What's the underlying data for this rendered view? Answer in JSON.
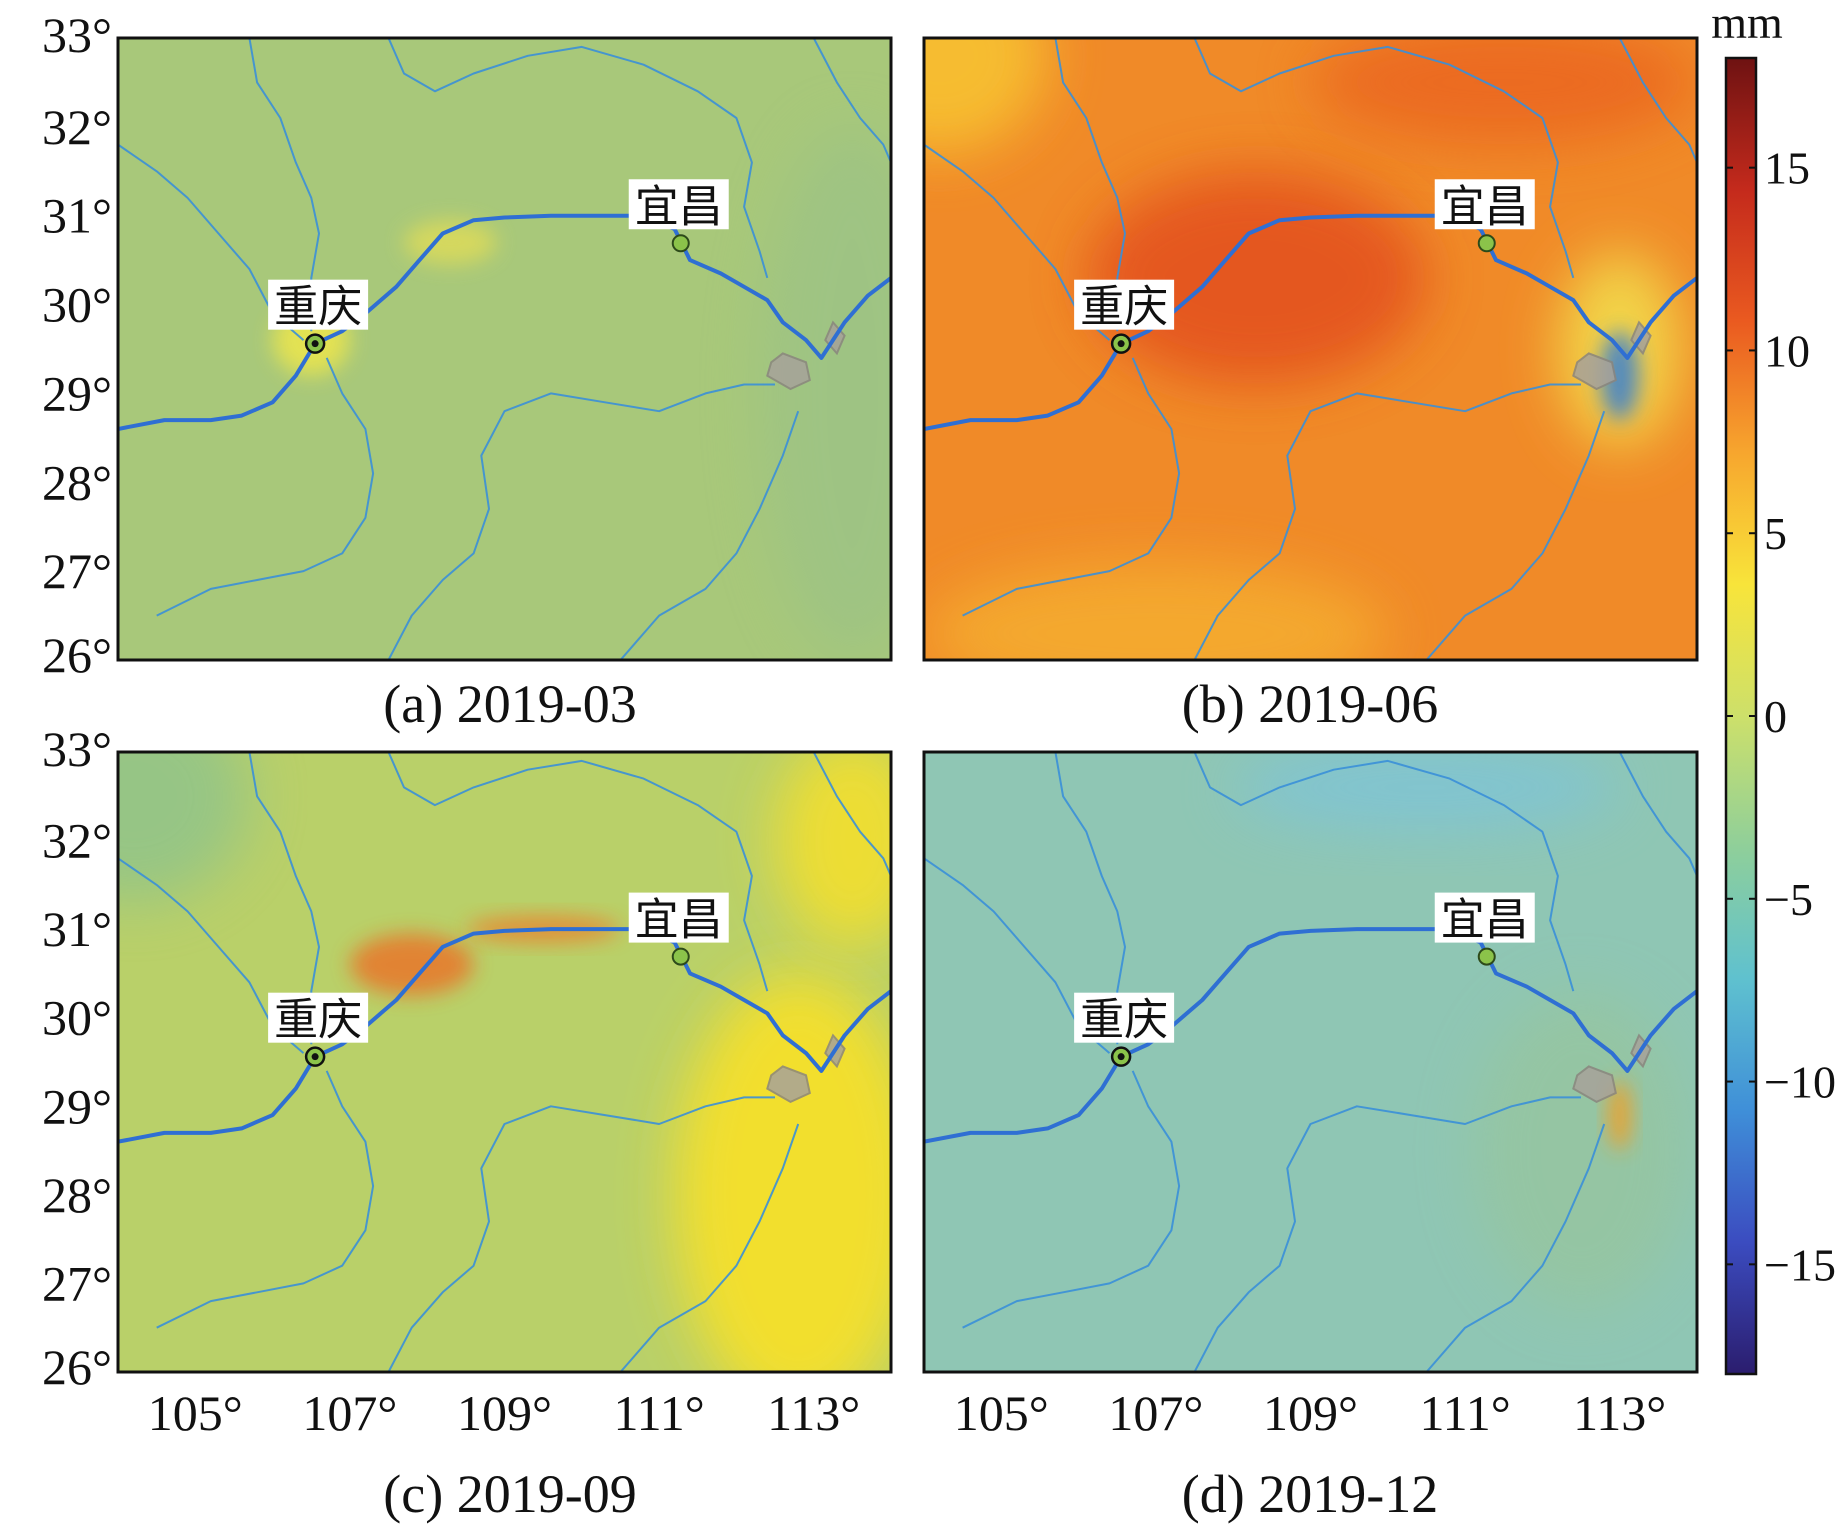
{
  "figure": {
    "panels": [
      {
        "id": "a",
        "caption": "(a) 2019-03",
        "base_color": "#a8c87a",
        "blobs": [
          {
            "x": 106.5,
            "y": 29.6,
            "rx": 0.5,
            "ry": 0.4,
            "color": "#f2e84a",
            "opacity": 0.8
          },
          {
            "x": 108.3,
            "y": 30.7,
            "rx": 0.6,
            "ry": 0.25,
            "color": "#e8df52",
            "opacity": 0.7
          },
          {
            "x": 113.5,
            "y": 29.0,
            "rx": 1.2,
            "ry": 3.0,
            "color": "#95c08c",
            "opacity": 0.5
          }
        ],
        "show_xticks": false,
        "show_yticks": true
      },
      {
        "id": "b",
        "caption": "(b) 2019-06",
        "base_color": "#f08a28",
        "blobs": [
          {
            "x": 104.2,
            "y": 32.8,
            "rx": 1.4,
            "ry": 1.1,
            "color": "#f7c231",
            "opacity": 0.9
          },
          {
            "x": 107.0,
            "y": 26.3,
            "rx": 3.0,
            "ry": 0.8,
            "color": "#f6b530",
            "opacity": 0.7
          },
          {
            "x": 108.3,
            "y": 30.3,
            "rx": 2.2,
            "ry": 1.2,
            "color": "#e1461c",
            "opacity": 0.75
          },
          {
            "x": 111.5,
            "y": 32.5,
            "rx": 2.5,
            "ry": 0.7,
            "color": "#e8561f",
            "opacity": 0.6
          },
          {
            "x": 113.0,
            "y": 29.5,
            "rx": 0.8,
            "ry": 1.1,
            "color": "#f2e250",
            "opacity": 0.85
          },
          {
            "x": 113.0,
            "y": 29.2,
            "rx": 0.25,
            "ry": 0.5,
            "color": "#3a7fd0",
            "opacity": 0.85
          }
        ],
        "show_xticks": false,
        "show_yticks": false
      },
      {
        "id": "c",
        "caption": "(c) 2019-09",
        "base_color": "#b9d069",
        "blobs": [
          {
            "x": 104.2,
            "y": 32.5,
            "rx": 1.5,
            "ry": 1.2,
            "color": "#8ec38c",
            "opacity": 0.8
          },
          {
            "x": 112.8,
            "y": 28.0,
            "rx": 1.6,
            "ry": 2.5,
            "color": "#f6e02c",
            "opacity": 0.95
          },
          {
            "x": 113.5,
            "y": 32.0,
            "rx": 1.0,
            "ry": 1.2,
            "color": "#f3df2e",
            "opacity": 0.9
          },
          {
            "x": 107.8,
            "y": 30.6,
            "rx": 0.8,
            "ry": 0.35,
            "color": "#ef6b24",
            "opacity": 0.75
          },
          {
            "x": 109.5,
            "y": 31.0,
            "rx": 1.0,
            "ry": 0.15,
            "color": "#f07a25",
            "opacity": 0.75
          }
        ],
        "show_xticks": true,
        "show_yticks": true
      },
      {
        "id": "d",
        "caption": "(d) 2019-12",
        "base_color": "#8fc6b4",
        "blobs": [
          {
            "x": 110.5,
            "y": 32.6,
            "rx": 2.5,
            "ry": 0.5,
            "color": "#7ec4d8",
            "opacity": 0.8
          },
          {
            "x": 112.5,
            "y": 28.5,
            "rx": 1.4,
            "ry": 1.8,
            "color": "#99c598",
            "opacity": 0.6
          },
          {
            "x": 113.0,
            "y": 28.9,
            "rx": 0.15,
            "ry": 0.4,
            "color": "#f0a028",
            "opacity": 0.9
          }
        ],
        "show_xticks": true,
        "show_yticks": false
      }
    ],
    "extent": {
      "lon_min": 104,
      "lon_max": 114,
      "lat_min": 26,
      "lat_max": 33
    },
    "x_ticks": [
      {
        "value": 105,
        "label": "105°"
      },
      {
        "value": 107,
        "label": "107°"
      },
      {
        "value": 109,
        "label": "109°"
      },
      {
        "value": 111,
        "label": "111°"
      },
      {
        "value": 113,
        "label": "113°"
      }
    ],
    "y_ticks": [
      {
        "value": 33,
        "label": "33°"
      },
      {
        "value": 32,
        "label": "32°"
      },
      {
        "value": 31,
        "label": "31°"
      },
      {
        "value": 30,
        "label": "30°"
      },
      {
        "value": 29,
        "label": "29°"
      },
      {
        "value": 28,
        "label": "28°"
      },
      {
        "value": 27,
        "label": "27°"
      },
      {
        "value": 26,
        "label": "26°"
      }
    ],
    "cities": [
      {
        "name": "重庆",
        "lon": 106.55,
        "lat": 29.56,
        "marker": "#1a1a1a"
      },
      {
        "name": "宜昌",
        "lon": 111.28,
        "lat": 30.69,
        "marker": "#8bc34a"
      }
    ],
    "colorbar": {
      "unit": "mm",
      "min": -18,
      "max": 18,
      "ticks": [
        {
          "value": 15,
          "label": "15"
        },
        {
          "value": 10,
          "label": "10"
        },
        {
          "value": 5,
          "label": "5"
        },
        {
          "value": 0,
          "label": "0"
        },
        {
          "value": -5,
          "label": "−5"
        },
        {
          "value": -10,
          "label": "−10"
        },
        {
          "value": -15,
          "label": "−15"
        }
      ],
      "stops": [
        "#2b1d6e",
        "#3b4cc0",
        "#3f8fd8",
        "#5fc1cf",
        "#8fcf9a",
        "#cde06a",
        "#f8e43a",
        "#f7a62e",
        "#ea5a20",
        "#c42a1c",
        "#6e1212"
      ]
    },
    "rivers": {
      "yangtze": [
        [
          104.0,
          28.6
        ],
        [
          104.6,
          28.7
        ],
        [
          105.2,
          28.7
        ],
        [
          105.6,
          28.75
        ],
        [
          106.0,
          28.9
        ],
        [
          106.3,
          29.2
        ],
        [
          106.55,
          29.56
        ],
        [
          106.9,
          29.7
        ],
        [
          107.2,
          29.9
        ],
        [
          107.6,
          30.2
        ],
        [
          107.9,
          30.5
        ],
        [
          108.2,
          30.8
        ],
        [
          108.6,
          30.95
        ],
        [
          109.0,
          30.98
        ],
        [
          109.6,
          31.0
        ],
        [
          110.2,
          31.0
        ],
        [
          110.8,
          31.0
        ],
        [
          111.2,
          30.85
        ],
        [
          111.4,
          30.5
        ],
        [
          111.8,
          30.35
        ],
        [
          112.1,
          30.2
        ],
        [
          112.4,
          30.05
        ],
        [
          112.6,
          29.8
        ],
        [
          112.9,
          29.6
        ],
        [
          113.1,
          29.4
        ],
        [
          113.4,
          29.8
        ],
        [
          113.7,
          30.1
        ],
        [
          114.0,
          30.3
        ]
      ],
      "tributaries": [
        [
          [
            105.7,
            33.0
          ],
          [
            105.8,
            32.5
          ],
          [
            106.1,
            32.1
          ],
          [
            106.3,
            31.6
          ],
          [
            106.5,
            31.2
          ],
          [
            106.6,
            30.8
          ],
          [
            106.5,
            30.3
          ],
          [
            106.5,
            29.7
          ]
        ],
        [
          [
            104.0,
            31.8
          ],
          [
            104.5,
            31.5
          ],
          [
            104.9,
            31.2
          ],
          [
            105.3,
            30.8
          ],
          [
            105.7,
            30.4
          ],
          [
            106.0,
            29.9
          ],
          [
            106.4,
            29.6
          ]
        ],
        [
          [
            107.5,
            33.0
          ],
          [
            107.7,
            32.6
          ],
          [
            108.1,
            32.4
          ],
          [
            108.6,
            32.6
          ],
          [
            109.3,
            32.8
          ],
          [
            110.0,
            32.9
          ],
          [
            110.8,
            32.7
          ],
          [
            111.5,
            32.4
          ],
          [
            112.0,
            32.1
          ],
          [
            112.2,
            31.6
          ],
          [
            112.1,
            31.1
          ],
          [
            112.3,
            30.6
          ],
          [
            112.4,
            30.3
          ]
        ],
        [
          [
            104.5,
            26.5
          ],
          [
            105.2,
            26.8
          ],
          [
            105.8,
            26.9
          ],
          [
            106.4,
            27.0
          ],
          [
            106.9,
            27.2
          ],
          [
            107.2,
            27.6
          ],
          [
            107.3,
            28.1
          ],
          [
            107.2,
            28.6
          ],
          [
            106.9,
            29.0
          ],
          [
            106.7,
            29.4
          ]
        ],
        [
          [
            107.5,
            26.0
          ],
          [
            107.8,
            26.5
          ],
          [
            108.2,
            26.9
          ],
          [
            108.6,
            27.2
          ],
          [
            108.8,
            27.7
          ],
          [
            108.7,
            28.3
          ],
          [
            109.0,
            28.8
          ],
          [
            109.6,
            29.0
          ],
          [
            110.3,
            28.9
          ],
          [
            111.0,
            28.8
          ],
          [
            111.6,
            29.0
          ],
          [
            112.1,
            29.1
          ],
          [
            112.5,
            29.1
          ]
        ],
        [
          [
            110.5,
            26.0
          ],
          [
            111.0,
            26.5
          ],
          [
            111.6,
            26.8
          ],
          [
            112.0,
            27.2
          ],
          [
            112.3,
            27.7
          ],
          [
            112.6,
            28.3
          ],
          [
            112.8,
            28.8
          ]
        ],
        [
          [
            113.0,
            33.0
          ],
          [
            113.3,
            32.5
          ],
          [
            113.6,
            32.1
          ],
          [
            113.9,
            31.8
          ],
          [
            114.0,
            31.6
          ]
        ]
      ],
      "lakes": [
        [
          [
            112.4,
            29.2
          ],
          [
            112.7,
            29.05
          ],
          [
            112.95,
            29.15
          ],
          [
            112.9,
            29.35
          ],
          [
            112.6,
            29.45
          ],
          [
            112.45,
            29.35
          ]
        ],
        [
          [
            113.15,
            29.6
          ],
          [
            113.3,
            29.45
          ],
          [
            113.4,
            29.65
          ],
          [
            113.25,
            29.8
          ]
        ]
      ]
    }
  }
}
